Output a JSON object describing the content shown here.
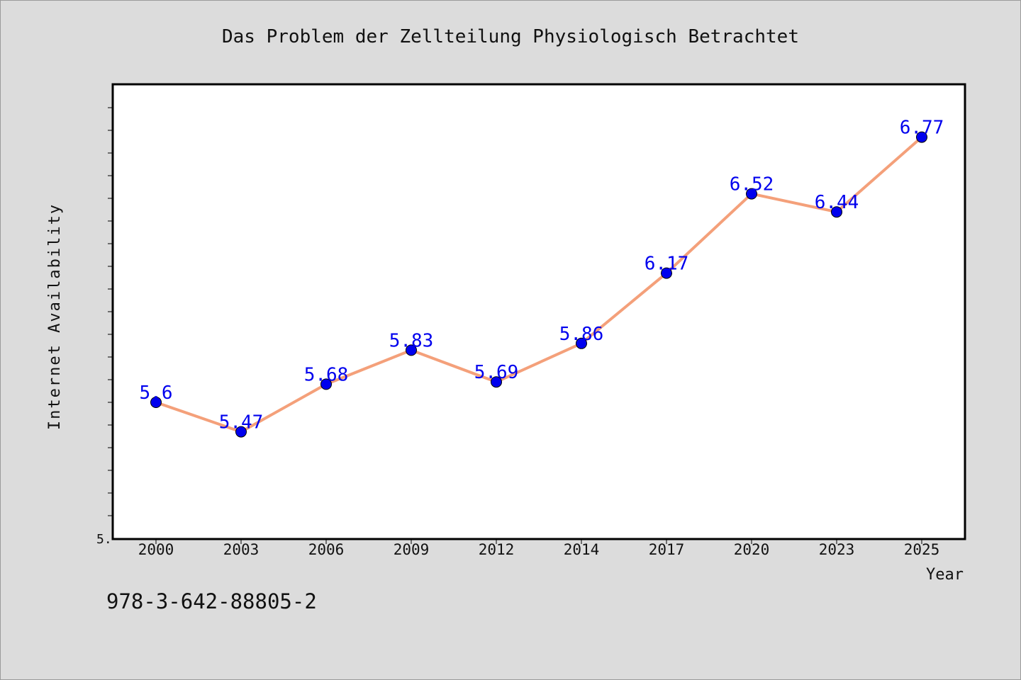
{
  "chart_data": {
    "type": "line",
    "title": "Das Problem der Zellteilung Physiologisch Betrachtet",
    "xlabel": "Year",
    "ylabel": "Internet Availability",
    "categories": [
      "2000",
      "2003",
      "2006",
      "2009",
      "2012",
      "2014",
      "2017",
      "2020",
      "2023",
      "2025"
    ],
    "values": [
      5.6,
      5.47,
      5.68,
      5.83,
      5.69,
      5.86,
      6.17,
      6.52,
      6.44,
      6.77
    ],
    "value_labels": [
      "5.6",
      "5.47",
      "5.68",
      "5.83",
      "5.69",
      "5.86",
      "6.17",
      "6.52",
      "6.44",
      "6.77"
    ],
    "ylim": [
      5.0,
      7.0
    ],
    "y_tick_label": "5.",
    "y_minor_ticks": [
      5.1,
      5.2,
      5.3,
      5.4,
      5.5,
      5.6,
      5.7,
      5.8,
      5.9,
      6.0,
      6.1,
      6.2,
      6.3,
      6.4,
      6.5,
      6.6,
      6.7,
      6.8,
      6.9
    ],
    "grid": false,
    "legend": "none",
    "line_color": "#f4a07a",
    "marker_color": "#0000ee",
    "label_color": "#0000ee"
  },
  "footer": {
    "isbn": "978-3-642-88805-2"
  }
}
